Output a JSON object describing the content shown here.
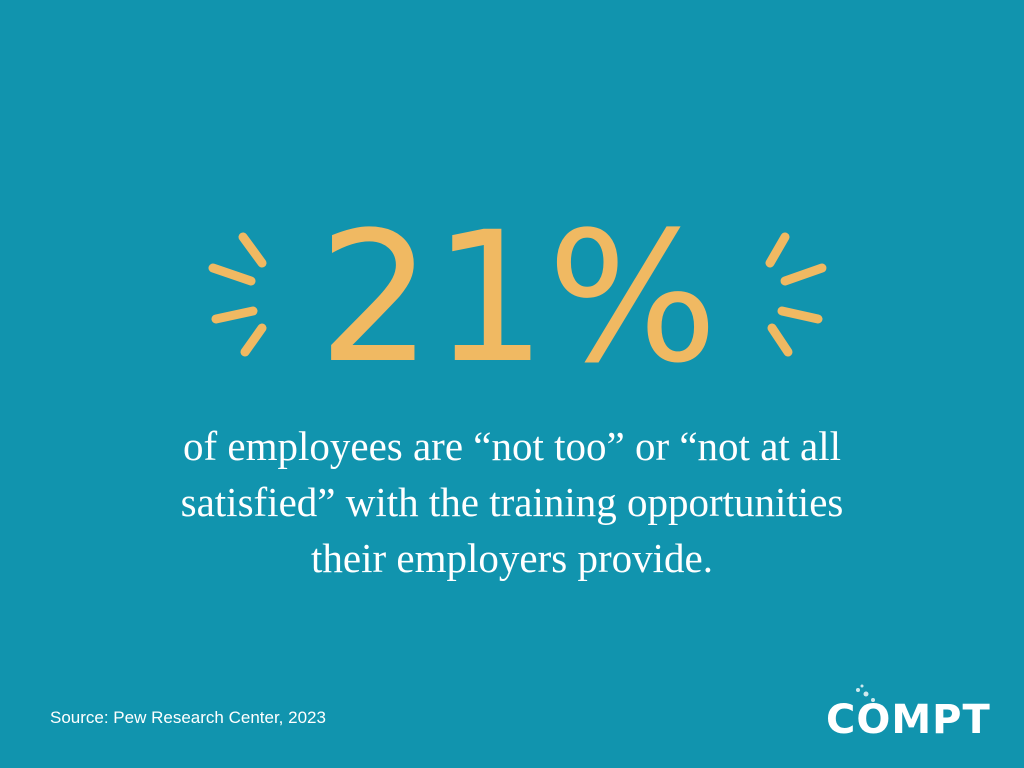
{
  "headline": {
    "stat": "21%"
  },
  "body": {
    "lines": [
      "of employees are “not too” or “not at all",
      "satisfied” with the training opportunities",
      "their employers provide."
    ]
  },
  "footer": {
    "source": "Source: Pew Research Center, 2023",
    "logo": "COMPT"
  }
}
